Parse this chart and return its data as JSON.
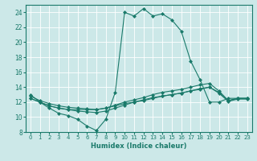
{
  "xlabel": "Humidex (Indice chaleur)",
  "ylabel": "",
  "background_color": "#cce8e8",
  "grid_color": "#ffffff",
  "line_color": "#1a7a6a",
  "xlim": [
    -0.5,
    23.5
  ],
  "ylim": [
    8,
    25
  ],
  "yticks": [
    8,
    10,
    12,
    14,
    16,
    18,
    20,
    22,
    24
  ],
  "xticks": [
    0,
    1,
    2,
    3,
    4,
    5,
    6,
    7,
    8,
    9,
    10,
    11,
    12,
    13,
    14,
    15,
    16,
    17,
    18,
    19,
    20,
    21,
    22,
    23
  ],
  "series": [
    {
      "x": [
        0,
        1,
        2,
        3,
        4,
        5,
        6,
        7,
        8,
        9,
        10,
        11,
        12,
        13,
        14,
        15,
        16,
        17,
        18,
        19,
        20,
        21,
        22,
        23
      ],
      "y": [
        13.0,
        12.0,
        11.2,
        10.5,
        10.2,
        9.7,
        8.8,
        8.2,
        9.7,
        13.3,
        24.0,
        23.5,
        24.5,
        23.5,
        23.8,
        23.0,
        21.5,
        17.5,
        15.0,
        12.0,
        12.0,
        12.5,
        12.5,
        12.5
      ]
    },
    {
      "x": [
        0,
        1,
        2,
        3,
        4,
        5,
        6,
        7,
        8,
        9,
        10,
        11,
        12,
        13,
        14,
        15,
        16,
        17,
        18,
        19,
        20,
        21,
        22,
        23
      ],
      "y": [
        12.5,
        12.0,
        11.5,
        11.2,
        11.0,
        11.0,
        11.0,
        11.0,
        11.2,
        11.5,
        11.8,
        12.0,
        12.2,
        12.5,
        12.8,
        13.0,
        13.2,
        13.5,
        13.8,
        14.0,
        13.3,
        12.2,
        12.5,
        12.5
      ]
    },
    {
      "x": [
        0,
        1,
        2,
        3,
        4,
        5,
        6,
        7,
        8,
        9,
        10,
        11,
        12,
        13,
        14,
        15,
        16,
        17,
        18,
        19,
        20,
        21,
        22,
        23
      ],
      "y": [
        12.8,
        12.2,
        11.8,
        11.5,
        11.3,
        11.2,
        11.1,
        11.0,
        11.2,
        11.6,
        12.0,
        12.3,
        12.6,
        13.0,
        13.3,
        13.5,
        13.7,
        14.0,
        14.3,
        14.5,
        13.5,
        12.2,
        12.5,
        12.5
      ]
    },
    {
      "x": [
        0,
        1,
        2,
        3,
        4,
        5,
        6,
        7,
        8,
        9,
        10,
        11,
        12,
        13,
        14,
        15,
        16,
        17,
        18,
        19,
        20,
        21,
        22,
        23
      ],
      "y": [
        12.5,
        12.0,
        11.5,
        11.2,
        11.0,
        10.8,
        10.7,
        10.6,
        10.8,
        11.2,
        11.6,
        12.0,
        12.3,
        12.6,
        12.8,
        13.0,
        13.2,
        13.5,
        13.7,
        14.0,
        13.2,
        12.1,
        12.4,
        12.4
      ]
    }
  ]
}
